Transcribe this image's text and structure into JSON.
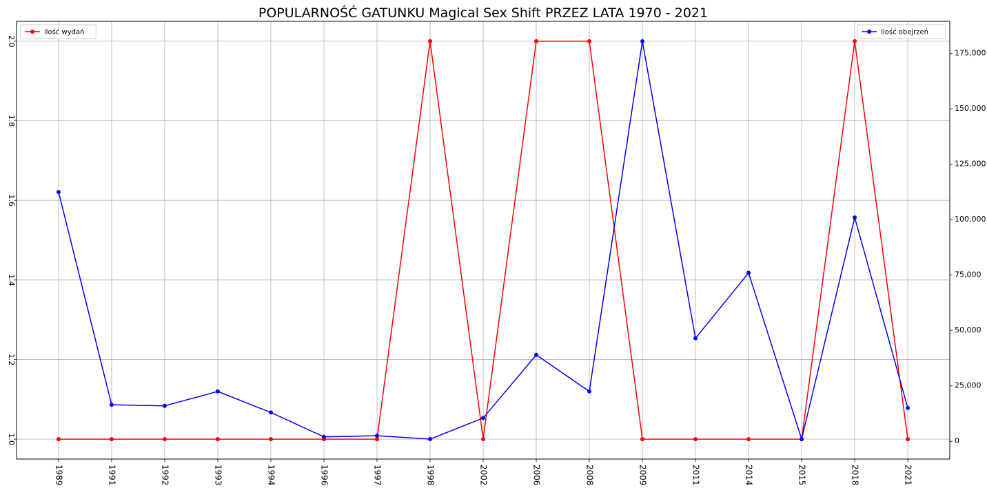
{
  "chart_data": {
    "type": "line",
    "title": "POPULARNOŚĆ GATUNKU Magical Sex Shift PRZEZ LATA 1970 - 2021",
    "xlabel": "",
    "categories": [
      "1989",
      "1991",
      "1992",
      "1993",
      "1994",
      "1996",
      "1997",
      "1998",
      "2002",
      "2006",
      "2008",
      "2009",
      "2011",
      "2014",
      "2015",
      "2018",
      "2021"
    ],
    "grid": true,
    "series": [
      {
        "name": "ilość wydań",
        "axis": "left",
        "color": "#ff0000",
        "values": [
          1,
          1,
          1,
          1,
          1,
          1,
          1,
          2,
          1,
          2,
          2,
          1,
          1,
          1,
          1,
          2,
          1
        ]
      },
      {
        "name": "ilość obejrzeń",
        "axis": "right",
        "color": "#0000ff",
        "values": [
          112500,
          16500,
          16000,
          22500,
          13000,
          2000,
          2500,
          1000,
          10500,
          39000,
          22500,
          180500,
          46500,
          76000,
          1000,
          101000,
          15000
        ]
      }
    ],
    "y_left": {
      "ylim": [
        0.95,
        2.05
      ],
      "ticks": [
        1.0,
        1.2,
        1.4,
        1.6,
        1.8,
        2.0
      ],
      "tick_labels": [
        "1.0",
        "1.2",
        "1.4",
        "1.6",
        "1.8",
        "2.0"
      ],
      "tick_rotation": 90
    },
    "y_right": {
      "ylim": [
        -8000,
        189500
      ],
      "ticks": [
        0,
        25000,
        50000,
        75000,
        100000,
        125000,
        150000,
        175000
      ],
      "tick_labels": [
        "0",
        "25,000",
        "50,000",
        "75,000",
        "100,000",
        "125,000",
        "150,000",
        "175,000"
      ]
    },
    "x_tick_rotation": 90,
    "legends": [
      {
        "label": "ilość wydań",
        "placement": "top-left",
        "color": "#ff0000"
      },
      {
        "label": "ilość obejrzeń",
        "placement": "top-right",
        "color": "#0000ff"
      }
    ]
  }
}
